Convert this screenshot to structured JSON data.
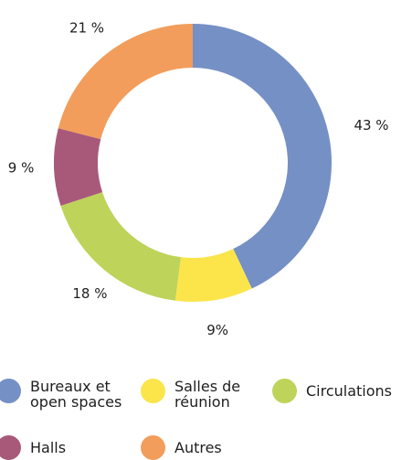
{
  "chart_data": {
    "type": "pie",
    "donut": true,
    "categories": [
      "Bureaux et\nopen spaces",
      "Salles de\nréunion",
      "Circulations",
      "Halls",
      "Autres"
    ],
    "values": [
      43,
      9,
      18,
      9,
      21
    ],
    "value_labels": [
      "43 %",
      "9%",
      "18 %",
      "9 %",
      "21 %"
    ],
    "colors": [
      "#7590c5",
      "#fbe54a",
      "#bed35a",
      "#a8597a",
      "#f29d5b"
    ],
    "legend_position": "bottom",
    "title": ""
  }
}
